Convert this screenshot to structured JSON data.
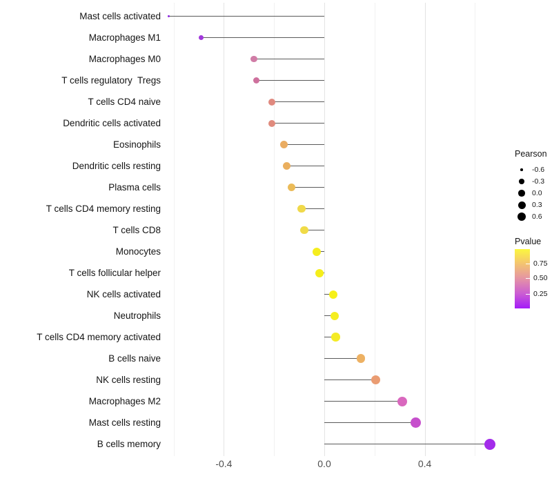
{
  "chart_data": {
    "type": "lollipop",
    "title": "",
    "xlabel": "",
    "ylabel": "",
    "xlim": [
      -0.64,
      0.69
    ],
    "grid": "on",
    "gridline_values": [
      -0.6,
      -0.4,
      -0.2,
      0.0,
      0.2,
      0.4,
      0.6
    ],
    "x_ticks": [
      {
        "label": "-0.4",
        "value": -0.4
      },
      {
        "label": "0.0",
        "value": 0.0
      },
      {
        "label": "0.4",
        "value": 0.4
      }
    ],
    "points": [
      {
        "label": "Mast cells activated",
        "pearson": -0.62,
        "pvalue": 0.06,
        "color": "#8f2be0",
        "size": 3.5
      },
      {
        "label": "Macrophages M1",
        "pearson": -0.49,
        "pvalue": 0.12,
        "color": "#a138db",
        "size": 7
      },
      {
        "label": "Macrophages M0",
        "pearson": -0.28,
        "pvalue": 0.45,
        "color": "#d07ca6",
        "size": 9.5
      },
      {
        "label": "T cells regulatory  Tregs",
        "pearson": -0.27,
        "pvalue": 0.42,
        "color": "#ce709d",
        "size": 9.5
      },
      {
        "label": "T cells CD4 naive",
        "pearson": -0.21,
        "pvalue": 0.55,
        "color": "#e0897f",
        "size": 10
      },
      {
        "label": "Dendritic cells activated",
        "pearson": -0.21,
        "pvalue": 0.56,
        "color": "#e08b7d",
        "size": 10
      },
      {
        "label": "Eosinophils",
        "pearson": -0.16,
        "pvalue": 0.68,
        "color": "#eaac61",
        "size": 11
      },
      {
        "label": "Dendritic cells resting",
        "pearson": -0.15,
        "pvalue": 0.69,
        "color": "#eaaf5e",
        "size": 11
      },
      {
        "label": "Plasma cells",
        "pearson": -0.13,
        "pvalue": 0.71,
        "color": "#ebbb58",
        "size": 11
      },
      {
        "label": "T cells CD4 memory resting",
        "pearson": -0.09,
        "pvalue": 0.79,
        "color": "#f0d94a",
        "size": 11.5
      },
      {
        "label": "T cells CD8",
        "pearson": -0.08,
        "pvalue": 0.8,
        "color": "#f0db47",
        "size": 11.5
      },
      {
        "label": "Monocytes",
        "pearson": -0.03,
        "pvalue": 0.93,
        "color": "#f5ed1e",
        "size": 12
      },
      {
        "label": "T cells follicular helper",
        "pearson": -0.02,
        "pvalue": 0.94,
        "color": "#f5ee1b",
        "size": 12
      },
      {
        "label": "NK cells activated",
        "pearson": 0.035,
        "pvalue": 0.95,
        "color": "#f6f018",
        "size": 12
      },
      {
        "label": "Neutrophils",
        "pearson": 0.04,
        "pvalue": 0.93,
        "color": "#f5ee20",
        "size": 12
      },
      {
        "label": "T cells CD4 memory activated",
        "pearson": 0.045,
        "pvalue": 0.91,
        "color": "#f4eb26",
        "size": 12.5
      },
      {
        "label": "B cells naive",
        "pearson": 0.145,
        "pvalue": 0.7,
        "color": "#edb163",
        "size": 12.5
      },
      {
        "label": "NK cells resting",
        "pearson": 0.205,
        "pvalue": 0.62,
        "color": "#ea9c72",
        "size": 13
      },
      {
        "label": "Macrophages M2",
        "pearson": 0.31,
        "pvalue": 0.33,
        "color": "#d968be",
        "size": 14
      },
      {
        "label": "Mast cells resting",
        "pearson": 0.365,
        "pvalue": 0.25,
        "color": "#c64fcc",
        "size": 15
      },
      {
        "label": "B cells memory",
        "pearson": 0.66,
        "pvalue": 0.07,
        "color": "#a32cea",
        "size": 16
      }
    ],
    "legend": {
      "size": {
        "title": "Pearson",
        "entries": [
          {
            "label": "-0.6",
            "size": 3.5
          },
          {
            "label": "-0.3",
            "size": 7.5
          },
          {
            "label": "0.0",
            "size": 9.5
          },
          {
            "label": "0.3",
            "size": 11
          },
          {
            "label": "0.6",
            "size": 12.5
          }
        ]
      },
      "color": {
        "title": "Pvalue",
        "gradient": [
          {
            "color": "#fbf73f",
            "pos": 0
          },
          {
            "color": "#f5c96b",
            "pos": 22
          },
          {
            "color": "#e595a3",
            "pos": 49
          },
          {
            "color": "#cb5dd3",
            "pos": 75
          },
          {
            "color": "#a41bf8",
            "pos": 100
          }
        ],
        "ticks": [
          {
            "label": "0.75",
            "pos": 24.4
          },
          {
            "label": "0.50",
            "pos": 48.8
          },
          {
            "label": "0.25",
            "pos": 75.0
          }
        ]
      }
    },
    "style": {
      "stem_color": "#595959",
      "major_grid_color": "#e3e3e3",
      "minor_grid_color": "#f1f1f1",
      "axis_text_color": "#4d4d4d"
    }
  }
}
